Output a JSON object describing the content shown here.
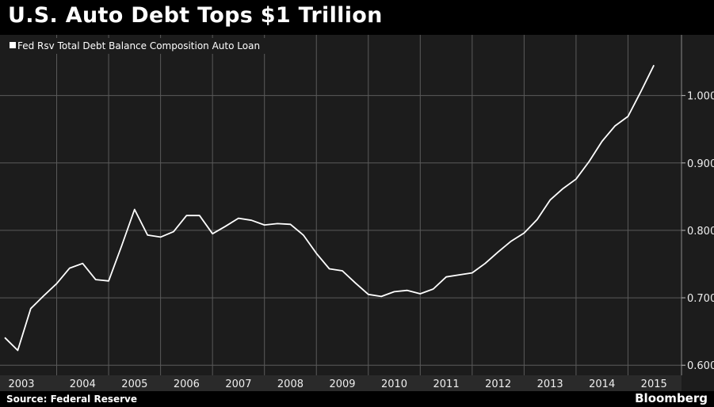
{
  "title": "U.S. Auto Debt Tops $1 Trillion",
  "source": "Source: Federal Reserve",
  "brand": "Bloomberg",
  "colors": {
    "background": "#1c1c1c",
    "line": "#ffffff",
    "grid": "#5a5a5a"
  },
  "chart_data": {
    "type": "line",
    "legend": "Fed Rsv Total Debt Balance Composition Auto Loan",
    "legend_position": "top-left",
    "grid": true,
    "ylim": [
      0.585,
      1.09
    ],
    "yticks": [
      "1.000",
      "0.900",
      "0.800",
      "0.700",
      "0.600"
    ],
    "ytick_values": [
      1.0,
      0.9,
      0.8,
      0.7,
      0.6
    ],
    "xticks": [
      "2003",
      "2004",
      "2005",
      "2006",
      "2007",
      "2008",
      "2009",
      "2010",
      "2011",
      "2012",
      "2013",
      "2014",
      "2015"
    ],
    "xlim": [
      2003.0,
      2016.0
    ],
    "series": [
      {
        "name": "Fed Rsv Total Debt Balance Composition Auto Loan",
        "x": [
          2003.0,
          2003.25,
          2003.5,
          2003.75,
          2004.0,
          2004.25,
          2004.5,
          2004.75,
          2005.0,
          2005.25,
          2005.5,
          2005.75,
          2006.0,
          2006.25,
          2006.5,
          2006.75,
          2007.0,
          2007.25,
          2007.5,
          2007.75,
          2008.0,
          2008.25,
          2008.5,
          2008.75,
          2009.0,
          2009.25,
          2009.5,
          2009.75,
          2010.0,
          2010.25,
          2010.5,
          2010.75,
          2011.0,
          2011.25,
          2011.5,
          2011.75,
          2012.0,
          2012.25,
          2012.5,
          2012.75,
          2013.0,
          2013.25,
          2013.5,
          2013.75,
          2014.0,
          2014.25,
          2014.5,
          2014.75,
          2015.0,
          2015.25,
          2015.5
        ],
        "y": [
          0.641,
          0.622,
          0.684,
          0.703,
          0.721,
          0.744,
          0.751,
          0.727,
          0.725,
          0.777,
          0.831,
          0.793,
          0.79,
          0.798,
          0.822,
          0.822,
          0.795,
          0.806,
          0.818,
          0.815,
          0.808,
          0.81,
          0.809,
          0.793,
          0.766,
          0.743,
          0.74,
          0.722,
          0.705,
          0.702,
          0.709,
          0.711,
          0.706,
          0.713,
          0.731,
          0.734,
          0.737,
          0.751,
          0.768,
          0.784,
          0.796,
          0.816,
          0.845,
          0.862,
          0.876,
          0.902,
          0.932,
          0.955,
          0.969,
          1.006,
          1.045
        ]
      }
    ]
  }
}
